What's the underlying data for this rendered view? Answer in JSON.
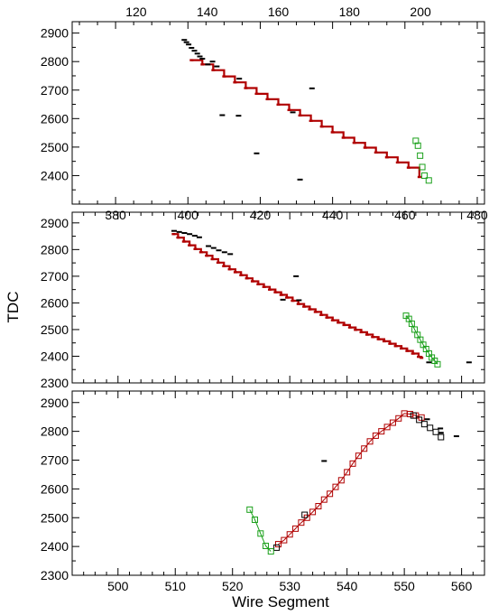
{
  "figure": {
    "ylabel": "TDC",
    "xlabel": "Wire Segment"
  },
  "colors": {
    "track": "#b00000",
    "hits": "#000000",
    "green": "#1aa01a"
  },
  "chart_data": [
    {
      "type": "scatter",
      "panel": "top",
      "grid": false,
      "xlim": [
        368,
        482
      ],
      "ylim": [
        2300,
        2940
      ],
      "top_xlim": [
        102,
        218
      ],
      "xticks": [
        380,
        400,
        420,
        440,
        460,
        480
      ],
      "top_xticks": [
        120,
        140,
        160,
        180,
        200
      ],
      "yticks": [
        2400,
        2500,
        2600,
        2700,
        2800,
        2900
      ],
      "series": [
        {
          "role": "track-red",
          "mode": "steps",
          "x": [
            401,
            404,
            407,
            410,
            413,
            416,
            419,
            422,
            425,
            428,
            431,
            434,
            437,
            440,
            443,
            446,
            449,
            452,
            455,
            458,
            461,
            464
          ],
          "y": [
            2805,
            2790,
            2770,
            2748,
            2727,
            2707,
            2687,
            2668,
            2649,
            2630,
            2611,
            2592,
            2572,
            2552,
            2533,
            2515,
            2498,
            2481,
            2464,
            2446,
            2428,
            2395
          ]
        },
        {
          "role": "hits-black",
          "mode": "dash",
          "x": [
            399,
            399.6,
            400.2,
            401,
            401.8,
            402.6,
            403.3,
            404,
            405.5,
            406.8,
            408,
            409.5,
            414,
            414.2,
            419,
            429,
            431,
            434.3
          ],
          "y": [
            2876,
            2868,
            2860,
            2848,
            2838,
            2828,
            2818,
            2810,
            2790,
            2800,
            2783,
            2612,
            2610,
            2740,
            2478,
            2622,
            2386,
            2706
          ]
        },
        {
          "role": "green-tail",
          "mode": "boxes",
          "x": [
            463,
            463.6,
            464.2,
            464.8,
            465.4,
            466.6
          ],
          "y": [
            2522,
            2505,
            2470,
            2430,
            2400,
            2383
          ]
        }
      ]
    },
    {
      "type": "scatter",
      "panel": "middle",
      "grid": false,
      "xlim": [
        492,
        564
      ],
      "ylim": [
        2300,
        2940
      ],
      "xticks": [],
      "yticks": [
        2300,
        2400,
        2500,
        2600,
        2700,
        2800,
        2900
      ],
      "series": [
        {
          "role": "track-red",
          "mode": "steps",
          "x": [
            509.7,
            510.5,
            511.5,
            512.5,
            513.5,
            514.5,
            515.5,
            516.5,
            517.5,
            518.5,
            519.5,
            520.5,
            521.5,
            522.5,
            523.5,
            524.5,
            525.5,
            526.5,
            527.5,
            528.5,
            529.5,
            530.5,
            531.5,
            532.5,
            533.5,
            534.5,
            535.5,
            536.5,
            537.5,
            538.5,
            539.5,
            540.5,
            541.5,
            542.5,
            543.5,
            544.5,
            545.5,
            546.5,
            547.5,
            548.5,
            549.5,
            550.5,
            551.5,
            552.5,
            553
          ],
          "y": [
            2858,
            2845,
            2830,
            2816,
            2802,
            2790,
            2777,
            2764,
            2751,
            2738,
            2726,
            2715,
            2704,
            2692,
            2681,
            2670,
            2660,
            2650,
            2640,
            2630,
            2620,
            2608,
            2596,
            2586,
            2576,
            2566,
            2555,
            2545,
            2535,
            2526,
            2517,
            2508,
            2499,
            2490,
            2481,
            2472,
            2464,
            2456,
            2447,
            2438,
            2429,
            2420,
            2410,
            2398,
            2394
          ]
        },
        {
          "role": "hits-black",
          "mode": "dash",
          "x": [
            509.8,
            510.7,
            511.6,
            512.5,
            513.4,
            514.2,
            515.8,
            516.7,
            517.6,
            518.6,
            519.6,
            528.8,
            531.1,
            531.6,
            554.3,
            561.3
          ],
          "y": [
            2870,
            2866,
            2862,
            2858,
            2852,
            2846,
            2813,
            2806,
            2797,
            2790,
            2783,
            2612,
            2700,
            2610,
            2377,
            2377
          ]
        },
        {
          "role": "green-tail",
          "mode": "boxes-line",
          "x": [
            550.3,
            550.8,
            551.3,
            551.8,
            552.3,
            552.8,
            553.3,
            553.8,
            554.3,
            554.8,
            555.3,
            555.8
          ],
          "y": [
            2552,
            2540,
            2522,
            2500,
            2480,
            2462,
            2443,
            2427,
            2410,
            2395,
            2383,
            2370
          ]
        }
      ]
    },
    {
      "type": "scatter",
      "panel": "bottom",
      "grid": false,
      "xlim": [
        492,
        564
      ],
      "ylim": [
        2300,
        2940
      ],
      "xticks": [
        500,
        510,
        520,
        530,
        540,
        550,
        560
      ],
      "yticks": [
        2300,
        2400,
        2500,
        2600,
        2700,
        2800,
        2900
      ],
      "series": [
        {
          "role": "track-red",
          "mode": "boxes-line",
          "x": [
            528,
            529,
            530,
            531,
            532,
            533,
            534,
            535,
            536,
            537,
            538,
            539,
            540,
            541,
            542,
            543,
            544,
            545,
            546,
            547,
            548,
            549,
            550,
            551,
            552,
            553
          ],
          "y": [
            2408,
            2422,
            2442,
            2462,
            2483,
            2500,
            2520,
            2540,
            2563,
            2583,
            2607,
            2630,
            2658,
            2688,
            2715,
            2740,
            2765,
            2785,
            2800,
            2815,
            2830,
            2845,
            2862,
            2860,
            2855,
            2848
          ]
        },
        {
          "role": "hits-black",
          "mode": "boxes",
          "x": [
            527.7,
            532.6,
            551.6,
            552.6,
            553.5,
            554.5,
            555.5,
            556.4
          ],
          "y": [
            2396,
            2510,
            2855,
            2840,
            2825,
            2812,
            2798,
            2780
          ]
        },
        {
          "role": "hits-black-dash",
          "mode": "dash",
          "x": [
            536,
            554,
            556.3,
            556.4,
            559.1
          ],
          "y": [
            2697,
            2842,
            2810,
            2795,
            2783
          ]
        },
        {
          "role": "green-tail",
          "mode": "boxes-line",
          "x": [
            523,
            523.9,
            524.9,
            525.8,
            526.7
          ],
          "y": [
            2528,
            2493,
            2445,
            2402,
            2383
          ]
        }
      ]
    }
  ]
}
